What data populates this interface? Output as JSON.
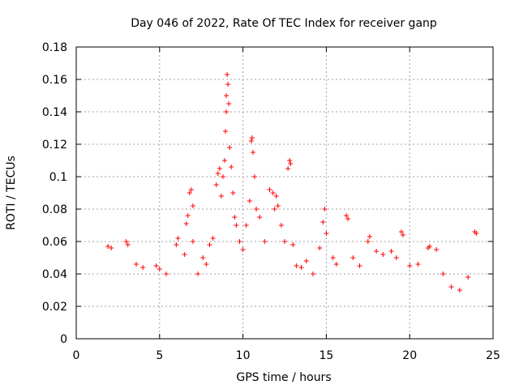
{
  "chart_data": {
    "type": "scatter",
    "title": "Day 046 of 2022, Rate Of TEC Index for receiver ganp",
    "xlabel": "GPS time / hours",
    "ylabel": "ROTI / TECUs",
    "xlim": [
      0,
      25
    ],
    "ylim": [
      0,
      0.18
    ],
    "xticks": [
      "0",
      "5",
      "10",
      "15",
      "20",
      "25"
    ],
    "yticks": [
      "0",
      "0.02",
      "0.04",
      "0.06",
      "0.08",
      "0.1",
      "0.12",
      "0.14",
      "0.16",
      "0.18"
    ],
    "grid": true,
    "marker": "plus",
    "color": "#ff0000",
    "series": [
      {
        "points": [
          [
            1.9,
            0.057
          ],
          [
            2.1,
            0.056
          ],
          [
            3.0,
            0.06
          ],
          [
            3.1,
            0.058
          ],
          [
            3.6,
            0.046
          ],
          [
            4.0,
            0.044
          ],
          [
            4.8,
            0.045
          ],
          [
            5.0,
            0.043
          ],
          [
            5.4,
            0.04
          ],
          [
            6.0,
            0.058
          ],
          [
            6.1,
            0.062
          ],
          [
            6.5,
            0.052
          ],
          [
            6.6,
            0.071
          ],
          [
            6.7,
            0.076
          ],
          [
            6.8,
            0.09
          ],
          [
            6.9,
            0.092
          ],
          [
            7.0,
            0.082
          ],
          [
            7.0,
            0.06
          ],
          [
            7.3,
            0.04
          ],
          [
            7.6,
            0.05
          ],
          [
            7.8,
            0.046
          ],
          [
            8.0,
            0.058
          ],
          [
            8.2,
            0.062
          ],
          [
            8.4,
            0.095
          ],
          [
            8.5,
            0.102
          ],
          [
            8.6,
            0.105
          ],
          [
            8.7,
            0.088
          ],
          [
            8.8,
            0.1
          ],
          [
            8.9,
            0.11
          ],
          [
            8.95,
            0.128
          ],
          [
            9.0,
            0.14
          ],
          [
            9.0,
            0.15
          ],
          [
            9.05,
            0.163
          ],
          [
            9.1,
            0.157
          ],
          [
            9.15,
            0.145
          ],
          [
            9.2,
            0.118
          ],
          [
            9.3,
            0.106
          ],
          [
            9.4,
            0.09
          ],
          [
            9.5,
            0.075
          ],
          [
            9.6,
            0.07
          ],
          [
            9.8,
            0.06
          ],
          [
            10.0,
            0.055
          ],
          [
            10.2,
            0.07
          ],
          [
            10.4,
            0.085
          ],
          [
            10.5,
            0.122
          ],
          [
            10.55,
            0.124
          ],
          [
            10.6,
            0.115
          ],
          [
            10.7,
            0.1
          ],
          [
            10.8,
            0.08
          ],
          [
            11.0,
            0.075
          ],
          [
            11.3,
            0.06
          ],
          [
            11.6,
            0.092
          ],
          [
            11.8,
            0.09
          ],
          [
            11.9,
            0.08
          ],
          [
            12.0,
            0.088
          ],
          [
            12.1,
            0.082
          ],
          [
            12.3,
            0.07
          ],
          [
            12.5,
            0.06
          ],
          [
            12.7,
            0.105
          ],
          [
            12.8,
            0.11
          ],
          [
            12.85,
            0.108
          ],
          [
            13.0,
            0.058
          ],
          [
            13.2,
            0.045
          ],
          [
            13.5,
            0.044
          ],
          [
            13.8,
            0.048
          ],
          [
            14.2,
            0.04
          ],
          [
            14.6,
            0.056
          ],
          [
            14.8,
            0.072
          ],
          [
            14.9,
            0.08
          ],
          [
            15.0,
            0.065
          ],
          [
            15.4,
            0.05
          ],
          [
            15.6,
            0.046
          ],
          [
            16.2,
            0.076
          ],
          [
            16.3,
            0.074
          ],
          [
            16.6,
            0.05
          ],
          [
            17.0,
            0.045
          ],
          [
            17.5,
            0.06
          ],
          [
            17.6,
            0.063
          ],
          [
            18.0,
            0.054
          ],
          [
            18.4,
            0.052
          ],
          [
            18.9,
            0.054
          ],
          [
            19.2,
            0.05
          ],
          [
            19.5,
            0.066
          ],
          [
            19.6,
            0.064
          ],
          [
            20.0,
            0.045
          ],
          [
            20.5,
            0.046
          ],
          [
            21.1,
            0.056
          ],
          [
            21.2,
            0.057
          ],
          [
            21.6,
            0.055
          ],
          [
            22.0,
            0.04
          ],
          [
            22.5,
            0.032
          ],
          [
            23.0,
            0.03
          ],
          [
            23.5,
            0.038
          ],
          [
            23.9,
            0.066
          ],
          [
            24.0,
            0.065
          ]
        ]
      }
    ]
  }
}
